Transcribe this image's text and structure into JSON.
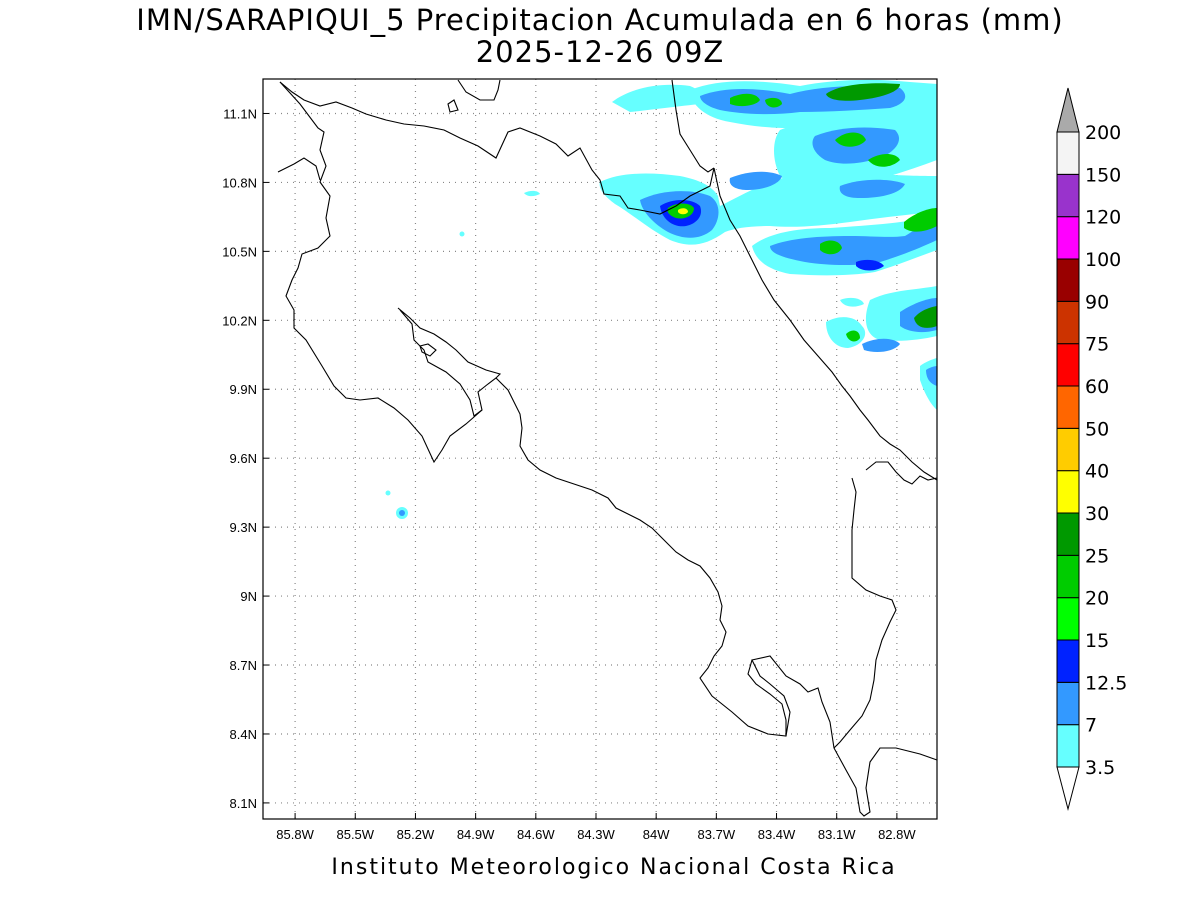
{
  "title": {
    "line1": "IMN/SARAPIQUI_5 Precipitacion Acumulada en 6 horas (mm)",
    "line2": "2025-12-26 09Z"
  },
  "credit": "Instituto Meteorologico Nacional Costa Rica",
  "map": {
    "lon_ticks": [
      "85.8W",
      "85.5W",
      "85.2W",
      "84.9W",
      "84.6W",
      "84.3W",
      "84W",
      "83.7W",
      "83.4W",
      "83.1W",
      "82.8W"
    ],
    "lat_ticks": [
      "11.1N",
      "10.8N",
      "10.5N",
      "10.2N",
      "9.9N",
      "9.6N",
      "9.3N",
      "9N",
      "8.7N",
      "8.4N",
      "8.1N"
    ],
    "extent": {
      "lon_min": -85.96,
      "lon_max": -82.6,
      "lat_min": 8.03,
      "lat_max": 11.25
    },
    "gridlines": "dotted"
  },
  "colorbar": {
    "levels": [
      "3.5",
      "7",
      "12.5",
      "15",
      "20",
      "25",
      "30",
      "40",
      "50",
      "60",
      "75",
      "90",
      "100",
      "120",
      "150",
      "200"
    ],
    "colors": [
      "#66ffff",
      "#3399ff",
      "#0022ff",
      "#00ff00",
      "#00cc00",
      "#009900",
      "#ffff00",
      "#ffcc00",
      "#ff6600",
      "#ff0000",
      "#cc3300",
      "#990000",
      "#ff00ff",
      "#9933cc",
      "#f4f4f4",
      "#aaaaaa"
    ]
  }
}
